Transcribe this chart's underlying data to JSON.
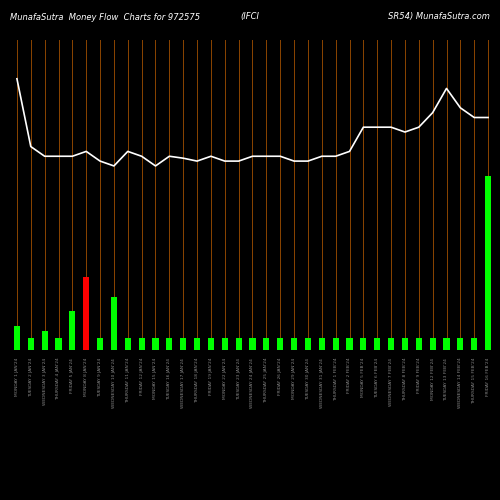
{
  "title_left": "MunafaSutra  Money Flow  Charts for 972575",
  "title_center": "(IFCI",
  "title_right": "SR54) MunafaSutra.com",
  "background_color": "#000000",
  "bar_color_default": "#00ff00",
  "bar_color_red": "#ff0000",
  "line_color": "#ffffff",
  "grid_color": "#8B4500",
  "n_bars": 35,
  "bar_heights": [
    2.5,
    1.2,
    2.0,
    1.2,
    4.0,
    7.5,
    1.2,
    5.5,
    1.2,
    1.2,
    1.2,
    1.2,
    1.2,
    1.2,
    1.2,
    1.2,
    1.2,
    1.2,
    1.2,
    1.2,
    1.2,
    1.2,
    1.2,
    1.2,
    1.2,
    1.2,
    1.2,
    1.2,
    1.2,
    1.2,
    1.2,
    1.2,
    1.2,
    1.2,
    18.0
  ],
  "red_bar_index": 5,
  "line_values": [
    28,
    21,
    20,
    20,
    20,
    20.5,
    19.5,
    19,
    20.5,
    20,
    19,
    20,
    19.8,
    19.5,
    20,
    19.5,
    19.5,
    20,
    20,
    20,
    19.5,
    19.5,
    20,
    20,
    20.5,
    23,
    23,
    23,
    22.5,
    23,
    24.5,
    27,
    25,
    24,
    24
  ],
  "ylim_max": 32,
  "x_labels": [
    "MONDAY 1 JAN'24",
    "TUESDAY 2 JAN'24",
    "WEDNESDAY 3 JAN'24",
    "THURSDAY 4 JAN'24",
    "FRIDAY 5 JAN'24",
    "MONDAY 8 JAN'24",
    "TUESDAY 9 JAN'24",
    "WEDNESDAY 10 JAN'24",
    "THURSDAY 11 JAN'24",
    "FRIDAY 12 JAN'24",
    "MONDAY 15 JAN'24",
    "TUESDAY 16 JAN'24",
    "WEDNESDAY 17 JAN'24",
    "THURSDAY 18 JAN'24",
    "FRIDAY 19 JAN'24",
    "MONDAY 22 JAN'24",
    "TUESDAY 23 JAN'24",
    "WEDNESDAY 24 JAN'24",
    "THURSDAY 25 JAN'24",
    "FRIDAY 26 JAN'24",
    "MONDAY 29 JAN'24",
    "TUESDAY 30 JAN'24",
    "WEDNESDAY 31 JAN'24",
    "THURSDAY 1 FEB'24",
    "FRIDAY 2 FEB'24",
    "MONDAY 5 FEB'24",
    "TUESDAY 6 FEB'24",
    "WEDNESDAY 7 FEB'24",
    "THURSDAY 8 FEB'24",
    "FRIDAY 9 FEB'24",
    "MONDAY 12 FEB'24",
    "TUESDAY 13 FEB'24",
    "WEDNESDAY 14 FEB'24",
    "THURSDAY 15 FEB'24",
    "FRIDAY 16 FEB'24"
  ]
}
